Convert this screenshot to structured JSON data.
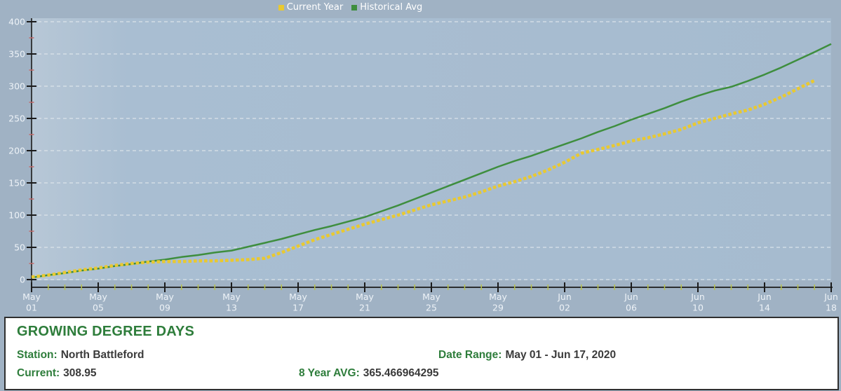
{
  "chart_data": {
    "type": "line",
    "title": "",
    "legend_position": "top-center",
    "grid": "horizontal-dashed",
    "x_axis": {
      "tick_labels": [
        "May 01",
        "May 05",
        "May 09",
        "May 13",
        "May 17",
        "May 21",
        "May 25",
        "May 29",
        "Jun 02",
        "Jun 06",
        "Jun 10",
        "Jun 14",
        "Jun 18"
      ],
      "minor_tick_every_days": 1
    },
    "y_axis": {
      "min": 0,
      "max": 400,
      "major_step": 50,
      "minor_step": 25,
      "tick_labels": [
        "0",
        "50",
        "100",
        "150",
        "200",
        "250",
        "300",
        "350",
        "400"
      ]
    },
    "dates": [
      "May 01",
      "May 02",
      "May 03",
      "May 04",
      "May 05",
      "May 06",
      "May 07",
      "May 08",
      "May 09",
      "May 10",
      "May 11",
      "May 12",
      "May 13",
      "May 14",
      "May 15",
      "May 16",
      "May 17",
      "May 18",
      "May 19",
      "May 20",
      "May 21",
      "May 22",
      "May 23",
      "May 24",
      "May 25",
      "May 26",
      "May 27",
      "May 28",
      "May 29",
      "May 30",
      "May 31",
      "Jun 01",
      "Jun 02",
      "Jun 03",
      "Jun 04",
      "Jun 05",
      "Jun 06",
      "Jun 07",
      "Jun 08",
      "Jun 09",
      "Jun 10",
      "Jun 11",
      "Jun 12",
      "Jun 13",
      "Jun 14",
      "Jun 15",
      "Jun 16",
      "Jun 17",
      "Jun 18"
    ],
    "series": [
      {
        "name": "Historical Avg",
        "color": "#3e8e3e",
        "line_style": "solid",
        "values": [
          3,
          7,
          10,
          14,
          17,
          21,
          24,
          28,
          31,
          35,
          38,
          42,
          45,
          51,
          57,
          63,
          70,
          77,
          83,
          90,
          97,
          106,
          115,
          125,
          135,
          145,
          155,
          165,
          175,
          184,
          192,
          201,
          210,
          219,
          229,
          238,
          248,
          257,
          266,
          276,
          285,
          293,
          299,
          308,
          318,
          329,
          341,
          353,
          365.47
        ]
      },
      {
        "name": "Current Year",
        "color": "#e9c930",
        "line_style": "dashed",
        "values": [
          4,
          7,
          11,
          15,
          18,
          22,
          25,
          27,
          28,
          28,
          29,
          29,
          30,
          31,
          33,
          42,
          52,
          62,
          70,
          78,
          86,
          93,
          100,
          108,
          116,
          122,
          128,
          136,
          145,
          152,
          160,
          170,
          182,
          196,
          202,
          208,
          215,
          220,
          226,
          233,
          243,
          250,
          257,
          263,
          272,
          283,
          296,
          308.95
        ]
      }
    ]
  },
  "panel": {
    "title": "GROWING DEGREE DAYS",
    "fields": {
      "station": {
        "label": "Station:",
        "value": "North Battleford"
      },
      "date_range": {
        "label": "Date Range:",
        "value": "May 01 - Jun 17, 2020"
      },
      "current": {
        "label": "Current:",
        "value": "308.95"
      },
      "avg": {
        "label": "8 Year AVG:",
        "value": "365.466964295"
      }
    }
  },
  "colors": {
    "chart_background": "#a0b2c4",
    "plot_background": "#a9bed2",
    "plot_background_light": "#b7c7d6",
    "gridline": "#e3e9ee",
    "axis": "#1b1b1b",
    "y_minor_tick": "#c36b6b",
    "x_minor_tick": "#b9c24b",
    "axis_label": "#edf2f7",
    "legend_text": "#ffffff",
    "panel_accent_green": "#2e7d3b",
    "panel_text": "#3a3a3a",
    "panel_border": "#2f2f2f",
    "panel_background": "#ffffff"
  }
}
